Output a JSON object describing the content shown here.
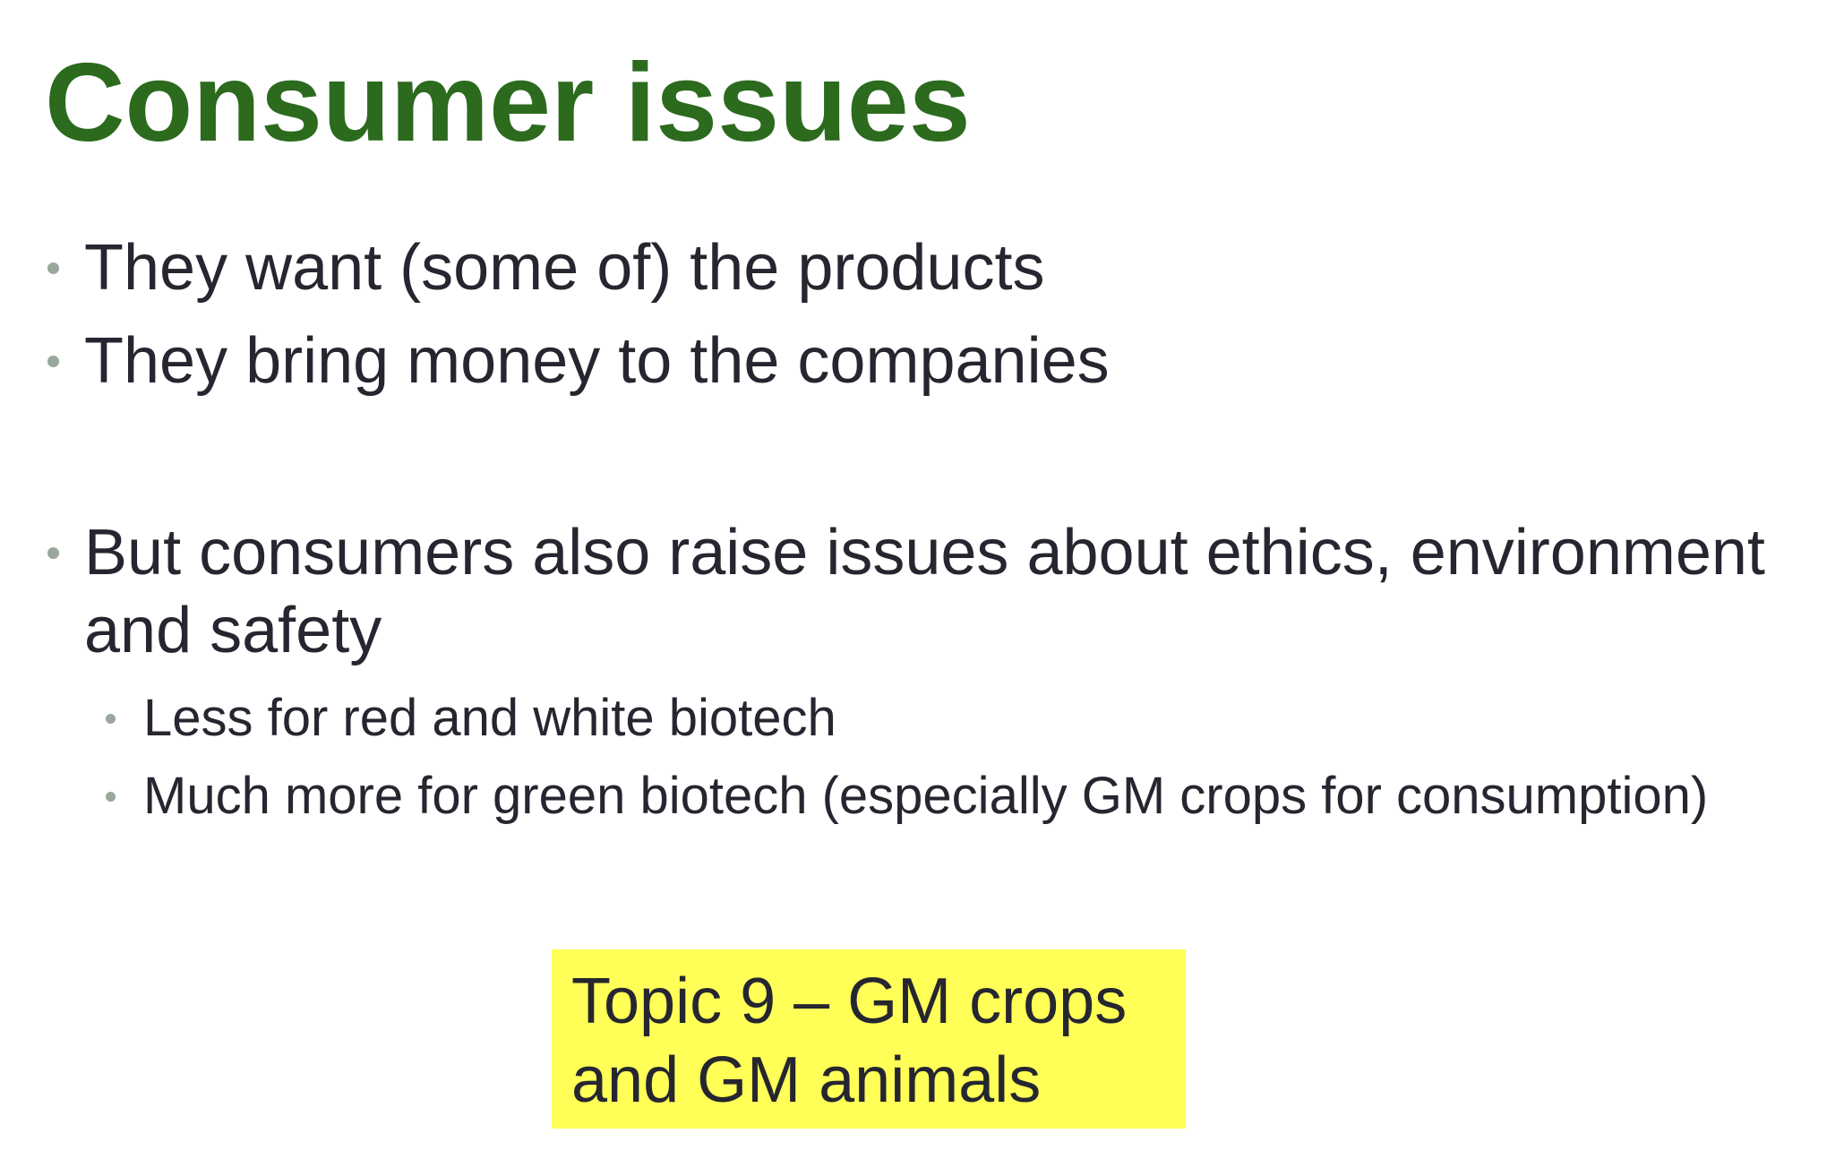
{
  "slide": {
    "title": "Consumer issues",
    "bullets": [
      {
        "text": "They want (some of) the products"
      },
      {
        "text": "They bring money to the companies"
      },
      {
        "line1": "But consumers also raise issues about ethics, environment",
        "line2": "and safety"
      }
    ],
    "sub_bullets": [
      {
        "text": "Less for red and white biotech"
      },
      {
        "text": "Much more for green biotech (especially GM crops for consumption)"
      }
    ],
    "callout": {
      "line1": "Topic 9 – GM crops",
      "line2": "and GM animals"
    },
    "colors": {
      "title": "#2c6a1e",
      "text": "#262630",
      "bullet": "#9aa79b",
      "callout_background": "#ffff57"
    }
  }
}
